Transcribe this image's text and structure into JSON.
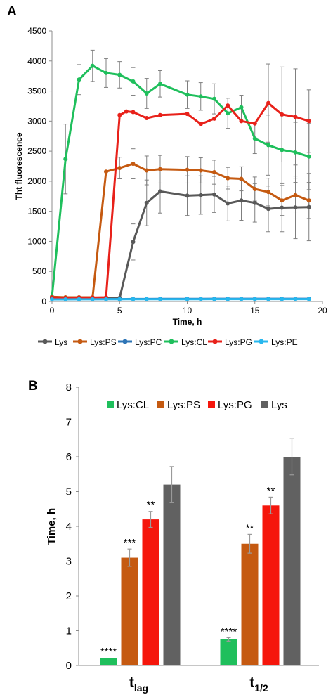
{
  "chart_data": [
    {
      "panel": "A",
      "type": "line",
      "title": "",
      "xlabel": "Time, h",
      "ylabel": "Tht fluorescence",
      "xlim": [
        0,
        20
      ],
      "ylim": [
        0,
        4500
      ],
      "xticks": [
        0,
        5,
        10,
        15,
        20
      ],
      "yticks": [
        0,
        500,
        1000,
        1500,
        2000,
        2500,
        3000,
        3500,
        4000,
        4500
      ],
      "grid": false,
      "legend_position": "bottom",
      "series": [
        {
          "name": "Lys",
          "color": "#595959",
          "x": [
            0,
            1,
            2,
            3,
            4,
            5,
            6,
            7,
            8,
            10,
            11,
            12,
            13,
            14,
            15,
            16,
            17,
            18,
            19
          ],
          "y": [
            60,
            50,
            55,
            60,
            55,
            60,
            990,
            1640,
            1830,
            1760,
            1770,
            1780,
            1630,
            1680,
            1640,
            1540,
            1560,
            1565,
            1570
          ],
          "err": [
            0,
            0,
            0,
            0,
            0,
            0,
            300,
            380,
            360,
            330,
            320,
            300,
            290,
            330,
            320,
            380,
            400,
            520,
            560
          ]
        },
        {
          "name": "Lys:PS",
          "color": "#c55a11",
          "x": [
            0,
            1,
            2,
            3,
            4,
            5,
            6,
            7,
            8,
            10,
            11,
            12,
            13,
            14,
            15,
            16,
            17,
            18,
            19
          ],
          "y": [
            80,
            70,
            70,
            70,
            2160,
            2220,
            2290,
            2180,
            2200,
            2190,
            2180,
            2150,
            2050,
            2040,
            1870,
            1820,
            1680,
            1770,
            1680
          ],
          "err": [
            0,
            0,
            0,
            0,
            0,
            180,
            250,
            240,
            230,
            220,
            210,
            200,
            180,
            200,
            200,
            230,
            250,
            280,
            300
          ]
        },
        {
          "name": "Lys:PC",
          "color": "#2e75b6",
          "x": [
            0,
            1,
            2,
            3,
            4,
            5,
            6,
            7,
            8,
            10,
            11,
            12,
            13,
            14,
            15,
            16,
            17,
            18,
            19
          ],
          "y": [
            50,
            45,
            42,
            40,
            40,
            40,
            42,
            42,
            44,
            44,
            44,
            45,
            46,
            46,
            46,
            46,
            46,
            46,
            46
          ],
          "err": []
        },
        {
          "name": "Lys:CL",
          "color": "#1fbf5c",
          "x": [
            0,
            1,
            2,
            3,
            4,
            5,
            6,
            7,
            8,
            10,
            11,
            12,
            13,
            14,
            15,
            16,
            17,
            18,
            19
          ],
          "y": [
            80,
            2370,
            3690,
            3920,
            3800,
            3770,
            3660,
            3460,
            3620,
            3440,
            3410,
            3370,
            3130,
            3230,
            2710,
            2600,
            2520,
            2480,
            2410
          ],
          "err": [
            0,
            580,
            250,
            260,
            240,
            220,
            230,
            250,
            220,
            230,
            230,
            250,
            250,
            200,
            250,
            500,
            550,
            500,
            550
          ]
        },
        {
          "name": "Lys:PG",
          "color": "#e8211a",
          "x": [
            0,
            1,
            2,
            3,
            4,
            5,
            5.5,
            6,
            7,
            8,
            10,
            11,
            12,
            13,
            14,
            15,
            16,
            17,
            18,
            19
          ],
          "y": [
            70,
            60,
            65,
            65,
            70,
            3100,
            3160,
            3150,
            3050,
            3100,
            3120,
            2950,
            3040,
            3260,
            3000,
            2960,
            3300,
            3110,
            3070,
            3000
          ],
          "err": [
            0,
            0,
            0,
            0,
            0,
            0,
            0,
            0,
            0,
            0,
            0,
            0,
            0,
            0,
            0,
            0,
            650,
            790,
            800,
            520
          ]
        },
        {
          "name": "Lys:PE",
          "color": "#27b7ee",
          "x": [
            0,
            1,
            2,
            3,
            4,
            5,
            6,
            7,
            8,
            10,
            11,
            12,
            13,
            14,
            15,
            16,
            17,
            18,
            19
          ],
          "y": [
            35,
            35,
            36,
            36,
            37,
            37,
            38,
            38,
            38,
            39,
            39,
            40,
            40,
            40,
            40,
            40,
            40,
            40,
            40
          ],
          "err": []
        }
      ]
    },
    {
      "panel": "B",
      "type": "bar",
      "title": "",
      "xlabel": "",
      "ylabel": "Time, h",
      "ylim": [
        0,
        8
      ],
      "yticks": [
        0,
        1,
        2,
        3,
        4,
        5,
        6,
        7,
        8
      ],
      "grid": false,
      "legend_position": "top",
      "categories": [
        {
          "main": "t",
          "sub": "lag"
        },
        {
          "main": "t",
          "sub": "1/2"
        }
      ],
      "series": [
        {
          "name": "Lys:CL",
          "color": "#1fbf5c",
          "values": [
            0.22,
            0.75
          ],
          "err": [
            0,
            0.05
          ],
          "labels": [
            "****",
            "****"
          ]
        },
        {
          "name": "Lys:PS",
          "color": "#c55a11",
          "values": [
            3.1,
            3.5
          ],
          "err": [
            0.25,
            0.27
          ],
          "labels": [
            "***",
            "**"
          ]
        },
        {
          "name": "Lys:PG",
          "color": "#f5160c",
          "values": [
            4.2,
            4.6
          ],
          "err": [
            0.23,
            0.24
          ],
          "labels": [
            "**",
            "**"
          ]
        },
        {
          "name": "Lys",
          "color": "#616161",
          "values": [
            5.2,
            6.0
          ],
          "err": [
            0.52,
            0.52
          ],
          "labels": [
            "",
            ""
          ]
        }
      ]
    }
  ]
}
